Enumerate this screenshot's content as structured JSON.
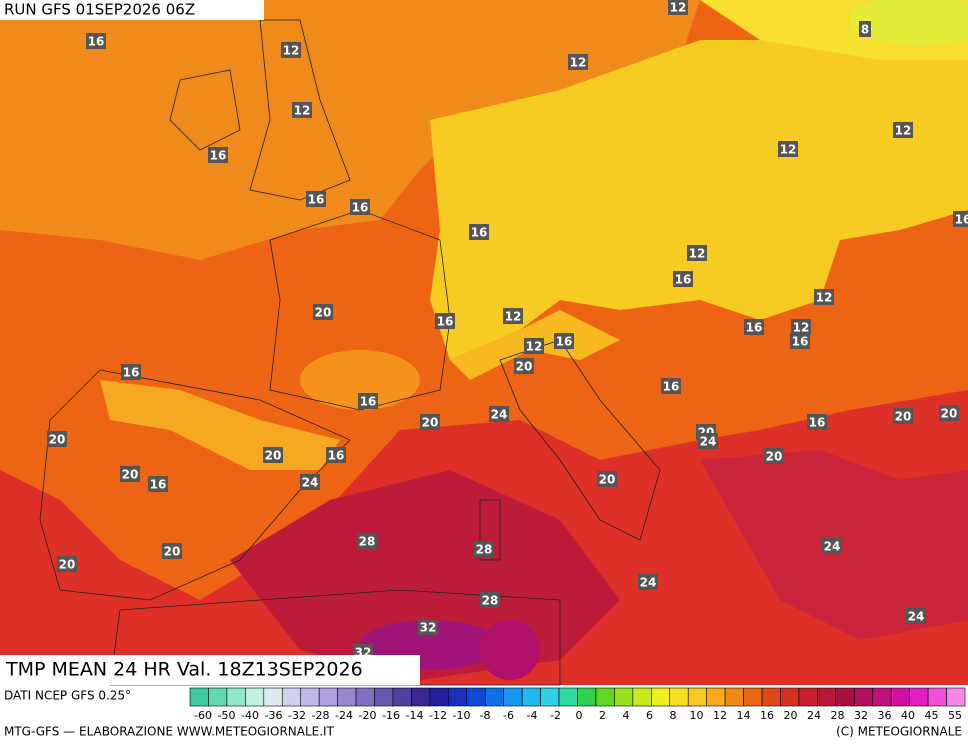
{
  "header": {
    "run": "RUN GFS 01SEP2026 06Z"
  },
  "map": {
    "labels": [
      12,
      8,
      16,
      12,
      12,
      12,
      12,
      16,
      12,
      16,
      16,
      16,
      16,
      12,
      16,
      12,
      20,
      16,
      12,
      16,
      12,
      16,
      12,
      16,
      20,
      16,
      16,
      16,
      24,
      20,
      20,
      20,
      16,
      20,
      20,
      24,
      20,
      16,
      20,
      20,
      16,
      24,
      20,
      28,
      28,
      20,
      24,
      20,
      24,
      28,
      24,
      32,
      32
    ]
  },
  "caption": {
    "title": "TMP MEAN 24 HR Val. 18Z13SEP2026"
  },
  "legend": {
    "source": "DATI NCEP GFS 0.25°",
    "ticks": [
      -60,
      -50,
      -40,
      -36,
      -32,
      -28,
      -24,
      -20,
      -16,
      -14,
      -12,
      -10,
      -8,
      -6,
      -4,
      -2,
      0,
      2,
      4,
      6,
      8,
      10,
      12,
      14,
      16,
      20,
      24,
      28,
      32,
      36,
      40,
      45,
      55
    ]
  },
  "footer": {
    "left": "MTG-GFS — ELABORAZIONE WWW.METEOGIORNALE.IT",
    "right": "(C) METEOGIORNALE"
  }
}
